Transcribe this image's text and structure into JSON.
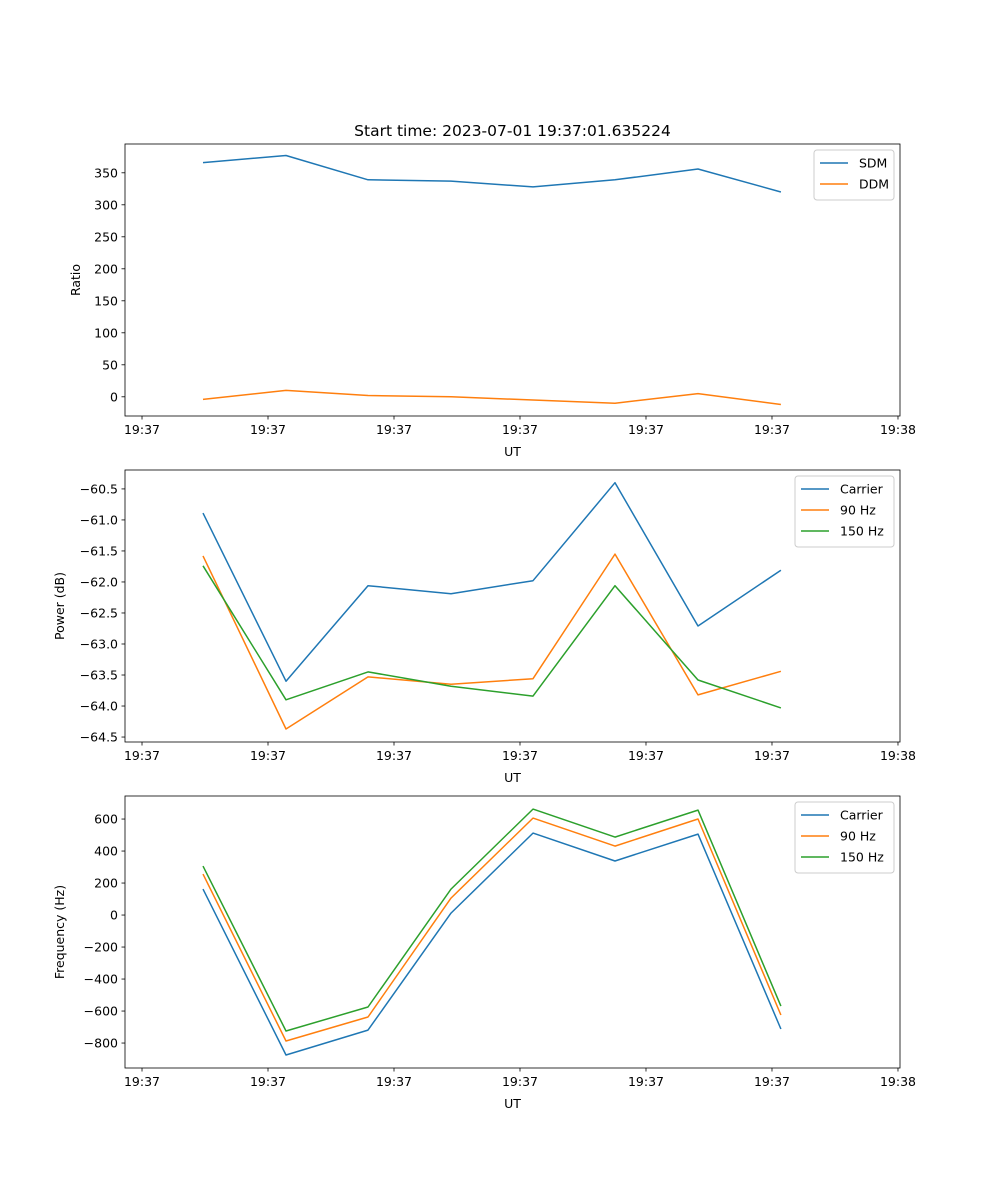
{
  "title": "Start time: 2023-07-01 19:37:01.635224",
  "colors": {
    "blue": "#1f77b4",
    "orange": "#ff7f0e",
    "green": "#2ca02c"
  },
  "chart_data": [
    {
      "type": "line",
      "ylabel": "Ratio",
      "xlabel": "UT",
      "x": [
        0.484,
        1.143,
        1.794,
        2.452,
        3.103,
        3.754,
        4.413,
        5.071
      ],
      "xlim": [
        -0.135,
        6.016
      ],
      "xticks": [
        0,
        1,
        2,
        3,
        4,
        5,
        6
      ],
      "xtick_labels": [
        "19:37",
        "19:37",
        "19:37",
        "19:37",
        "19:37",
        "19:37",
        "19:38"
      ],
      "ylim": [
        -30,
        395
      ],
      "yticks": [
        0,
        50,
        100,
        150,
        200,
        250,
        300,
        350
      ],
      "ytick_labels": [
        "0",
        "50",
        "100",
        "150",
        "200",
        "250",
        "300",
        "350"
      ],
      "legend": "top-right",
      "series": [
        {
          "name": "SDM",
          "color": "#1f77b4",
          "values": [
            366,
            377,
            339,
            337,
            328,
            339,
            356,
            320
          ]
        },
        {
          "name": "DDM",
          "color": "#ff7f0e",
          "values": [
            -4,
            10,
            2,
            0,
            -5,
            -10,
            5,
            -12
          ]
        }
      ]
    },
    {
      "type": "line",
      "ylabel": "Power (dB)",
      "xlabel": "UT",
      "x": [
        0.484,
        1.143,
        1.794,
        2.452,
        3.103,
        3.754,
        4.413,
        5.071
      ],
      "xlim": [
        -0.135,
        6.016
      ],
      "xticks": [
        0,
        1,
        2,
        3,
        4,
        5,
        6
      ],
      "xtick_labels": [
        "19:37",
        "19:37",
        "19:37",
        "19:37",
        "19:37",
        "19:37",
        "19:38"
      ],
      "ylim": [
        -64.58,
        -60.195
      ],
      "yticks": [
        -64.5,
        -64.0,
        -63.5,
        -63.0,
        -62.5,
        -62.0,
        -61.5,
        -61.0,
        -60.5
      ],
      "ytick_labels": [
        "−64.5",
        "−64.0",
        "−63.5",
        "−63.0",
        "−62.5",
        "−62.0",
        "−61.5",
        "−61.0",
        "−60.5"
      ],
      "legend": "top-right",
      "series": [
        {
          "name": "Carrier",
          "color": "#1f77b4",
          "values": [
            -60.89,
            -63.6,
            -62.06,
            -62.19,
            -61.98,
            -60.4,
            -62.71,
            -61.81
          ]
        },
        {
          "name": "90 Hz",
          "color": "#ff7f0e",
          "values": [
            -61.58,
            -64.37,
            -63.53,
            -63.65,
            -63.56,
            -61.55,
            -63.82,
            -63.44
          ]
        },
        {
          "name": "150 Hz",
          "color": "#2ca02c",
          "values": [
            -61.74,
            -63.9,
            -63.45,
            -63.68,
            -63.84,
            -62.06,
            -63.58,
            -64.03
          ]
        }
      ]
    },
    {
      "type": "line",
      "ylabel": "Frequency (Hz)",
      "xlabel": "UT",
      "x": [
        0.484,
        1.143,
        1.794,
        2.452,
        3.103,
        3.754,
        4.413,
        5.071
      ],
      "xlim": [
        -0.135,
        6.016
      ],
      "xticks": [
        0,
        1,
        2,
        3,
        4,
        5,
        6
      ],
      "xtick_labels": [
        "19:37",
        "19:37",
        "19:37",
        "19:37",
        "19:37",
        "19:37",
        "19:38"
      ],
      "ylim": [
        -956,
        744
      ],
      "yticks": [
        -800,
        -600,
        -400,
        -200,
        0,
        200,
        400,
        600
      ],
      "ytick_labels": [
        "−800",
        "−600",
        "−400",
        "−200",
        "0",
        "200",
        "400",
        "600"
      ],
      "legend": "top-right",
      "series": [
        {
          "name": "Carrier",
          "color": "#1f77b4",
          "values": [
            162,
            -875,
            -719,
            12,
            512,
            338,
            506,
            -712
          ]
        },
        {
          "name": "90 Hz",
          "color": "#ff7f0e",
          "values": [
            256,
            -787,
            -637,
            106,
            606,
            431,
            600,
            -625
          ]
        },
        {
          "name": "150 Hz",
          "color": "#2ca02c",
          "values": [
            306,
            -725,
            -575,
            162,
            662,
            487,
            656,
            -569
          ]
        }
      ]
    }
  ]
}
